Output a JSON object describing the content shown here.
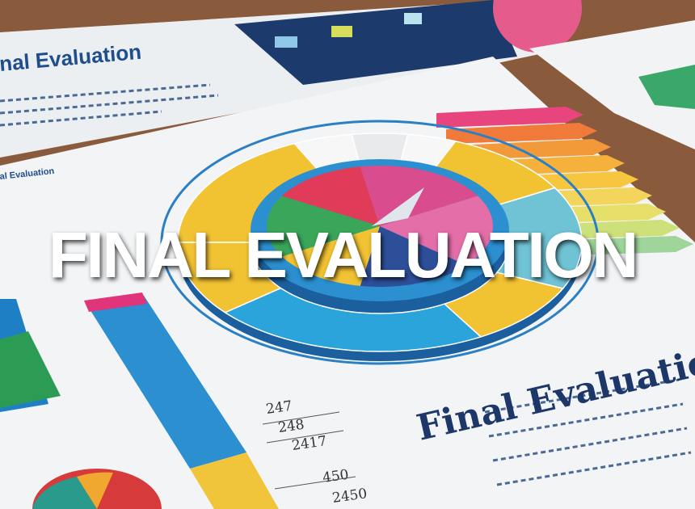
{
  "overlay": {
    "title": "FINAL EVALUATION"
  },
  "papers": {
    "top_left_heading": "nal Evaluation",
    "left_heading": "al Evaluation",
    "bottom_right_heading": "Final Evaluation",
    "bar_numbers": [
      "247",
      "248",
      "2417",
      "450",
      "2450"
    ]
  }
}
